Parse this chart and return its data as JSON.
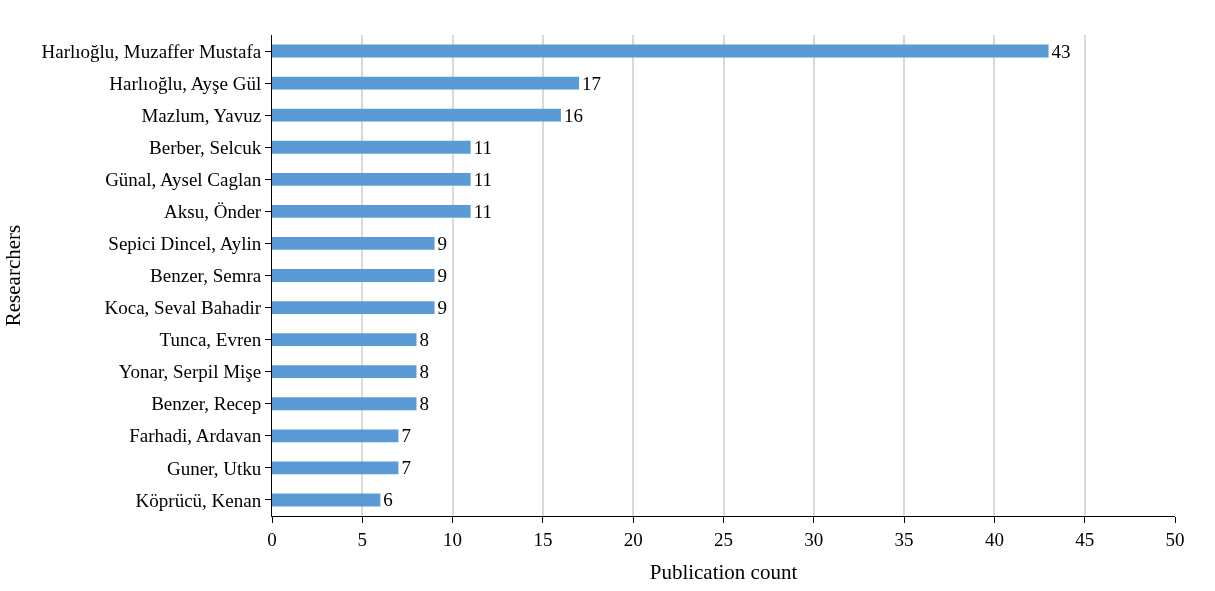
{
  "chart_data": {
    "type": "bar",
    "orientation": "horizontal",
    "xlabel": "Publication count",
    "ylabel": "Researchers",
    "categories": [
      "Harlıoğlu, Muzaffer Mustafa",
      "Harlıoğlu, Ayşe Gül",
      "Mazlum, Yavuz",
      "Berber, Selcuk",
      "Günal, Aysel Caglan",
      "Aksu, Önder",
      "Sepici Dincel, Aylin",
      "Benzer, Semra",
      "Koca, Seval Bahadir",
      "Tunca, Evren",
      "Yonar, Serpil Mişe",
      "Benzer, Recep",
      "Farhadi, Ardavan",
      "Guner, Utku",
      "Köprücü, Kenan"
    ],
    "values": [
      43,
      17,
      16,
      11,
      11,
      11,
      9,
      9,
      9,
      8,
      8,
      8,
      7,
      7,
      6
    ],
    "color": "#5b9bd5",
    "xlim": [
      0,
      50
    ],
    "xticks": [
      0,
      5,
      10,
      15,
      20,
      25,
      30,
      35,
      40,
      45,
      50
    ],
    "grid": "x",
    "data_labels": true
  }
}
